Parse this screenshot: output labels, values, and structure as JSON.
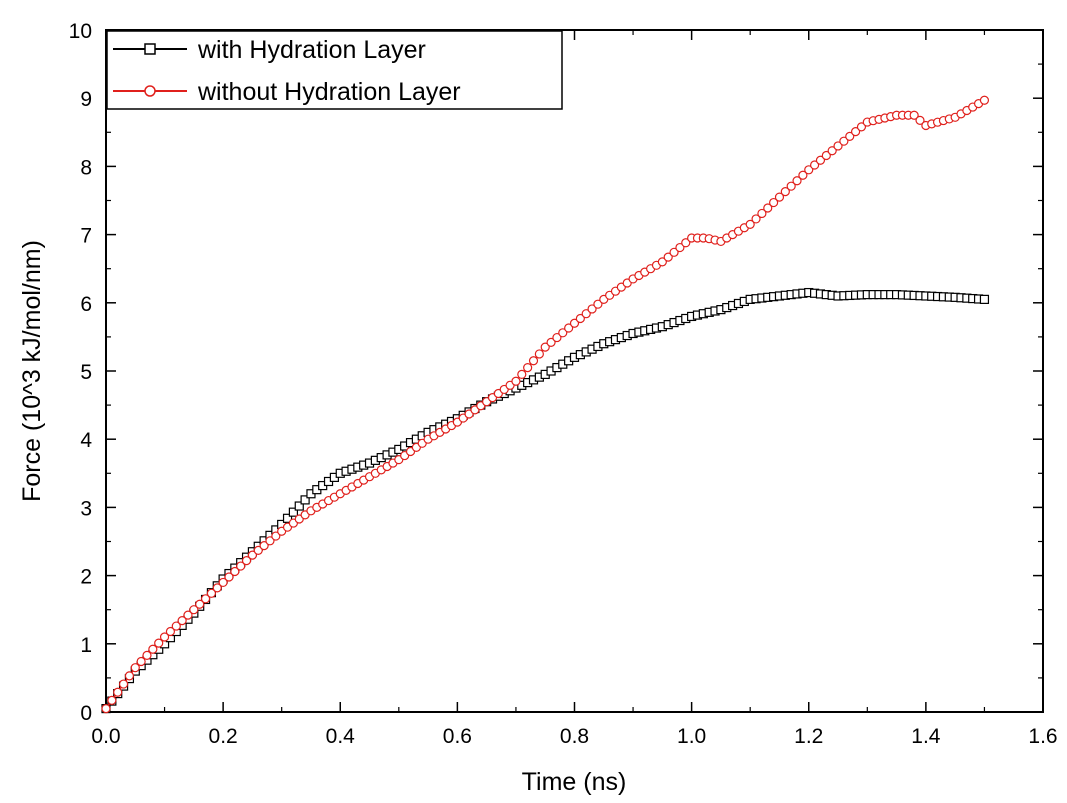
{
  "chart_data": {
    "type": "line",
    "title": "",
    "xlabel": "Time (ns)",
    "ylabel": "Force (10^3 kJ/mol/nm)",
    "xlim": [
      0.0,
      1.6
    ],
    "ylim": [
      0,
      10
    ],
    "x_ticks": [
      "0.0",
      "0.2",
      "0.4",
      "0.6",
      "0.8",
      "1.0",
      "1.2",
      "1.4",
      "1.6"
    ],
    "y_ticks": [
      "0",
      "1",
      "2",
      "3",
      "4",
      "5",
      "6",
      "7",
      "8",
      "9",
      "10"
    ],
    "grid": false,
    "legend_position": "top-left",
    "series": [
      {
        "name": "with Hydration Layer",
        "color": "#000000",
        "marker": "square",
        "x": [
          0.0,
          0.05,
          0.1,
          0.15,
          0.2,
          0.25,
          0.3,
          0.35,
          0.4,
          0.45,
          0.5,
          0.55,
          0.6,
          0.65,
          0.7,
          0.75,
          0.8,
          0.85,
          0.9,
          0.95,
          1.0,
          1.05,
          1.1,
          1.15,
          1.2,
          1.25,
          1.3,
          1.35,
          1.4,
          1.45,
          1.5
        ],
        "y": [
          0.05,
          0.6,
          1.0,
          1.45,
          1.95,
          2.35,
          2.75,
          3.2,
          3.5,
          3.65,
          3.85,
          4.1,
          4.3,
          4.55,
          4.75,
          4.95,
          5.2,
          5.4,
          5.55,
          5.65,
          5.8,
          5.9,
          6.05,
          6.1,
          6.15,
          6.1,
          6.12,
          6.12,
          6.1,
          6.08,
          6.05
        ]
      },
      {
        "name": "without Hydration Layer",
        "color": "#e0201c",
        "marker": "circle",
        "x": [
          0.0,
          0.05,
          0.1,
          0.15,
          0.2,
          0.25,
          0.3,
          0.35,
          0.4,
          0.45,
          0.5,
          0.55,
          0.6,
          0.65,
          0.7,
          0.75,
          0.8,
          0.85,
          0.9,
          0.95,
          1.0,
          1.025,
          1.05,
          1.1,
          1.15,
          1.2,
          1.25,
          1.3,
          1.35,
          1.38,
          1.4,
          1.45,
          1.5
        ],
        "y": [
          0.05,
          0.65,
          1.1,
          1.5,
          1.9,
          2.3,
          2.65,
          2.95,
          3.2,
          3.45,
          3.7,
          4.0,
          4.25,
          4.55,
          4.85,
          5.35,
          5.7,
          6.05,
          6.35,
          6.6,
          6.95,
          6.95,
          6.9,
          7.15,
          7.55,
          7.95,
          8.3,
          8.65,
          8.75,
          8.75,
          8.6,
          8.72,
          8.97
        ]
      }
    ]
  }
}
